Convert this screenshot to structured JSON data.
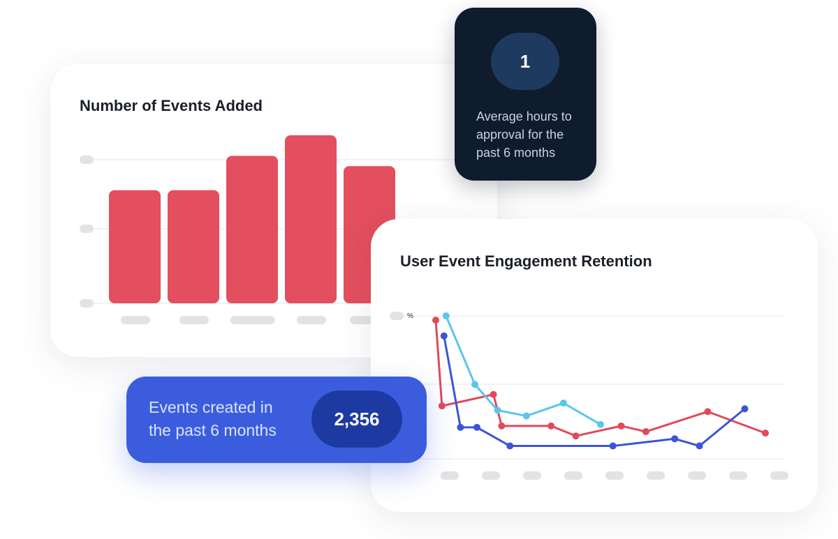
{
  "events_card": {
    "title": "Number of Events Added"
  },
  "retention_card": {
    "title": "User Event Engagement Retention",
    "y_unit": "%"
  },
  "hours_card": {
    "value": "1",
    "caption": "Average hours to approval for the past 6 months"
  },
  "created_card": {
    "value": "2,356",
    "caption": "Events created in the past 6 months"
  },
  "colors": {
    "bar": "#e34f5e",
    "series_red": "#e04a5a",
    "series_blue": "#3a55d6",
    "series_cyan": "#5bc6e8",
    "placeholder": "#e3e3e3",
    "grid": "#e6e6e6",
    "dark_card": "#0e1c2e",
    "blue_card": "#3b5ddd"
  },
  "chart_data": [
    {
      "type": "bar",
      "title": "Number of Events Added",
      "values": [
        1.65,
        1.65,
        2.15,
        2.45,
        2.0
      ],
      "ylim": [
        0,
        2.45
      ],
      "grid": true
    },
    {
      "type": "line",
      "title": "User Event Engagement Retention",
      "ylabel": "%",
      "ylim": [
        0,
        100
      ],
      "grid": true,
      "series": [
        {
          "color": "#e04a5a",
          "points": [
            [
              0,
              97
            ],
            [
              0.15,
              37
            ],
            [
              1.4,
              45
            ],
            [
              1.6,
              23
            ],
            [
              2.8,
              23
            ],
            [
              3.4,
              16
            ],
            [
              4.5,
              23
            ],
            [
              5.1,
              19
            ],
            [
              6.6,
              33
            ],
            [
              8.0,
              18
            ]
          ]
        },
        {
          "color": "#5bc6e8",
          "points": [
            [
              0.25,
              100
            ],
            [
              0.95,
              52
            ],
            [
              1.5,
              34
            ],
            [
              2.2,
              30
            ],
            [
              3.1,
              39
            ],
            [
              4.0,
              24
            ]
          ]
        },
        {
          "color": "#3a55d6",
          "points": [
            [
              0.2,
              86
            ],
            [
              0.6,
              22
            ],
            [
              1.0,
              22
            ],
            [
              1.8,
              9
            ],
            [
              4.3,
              9
            ],
            [
              5.8,
              14
            ],
            [
              6.4,
              9
            ],
            [
              7.5,
              35
            ]
          ]
        }
      ]
    }
  ]
}
